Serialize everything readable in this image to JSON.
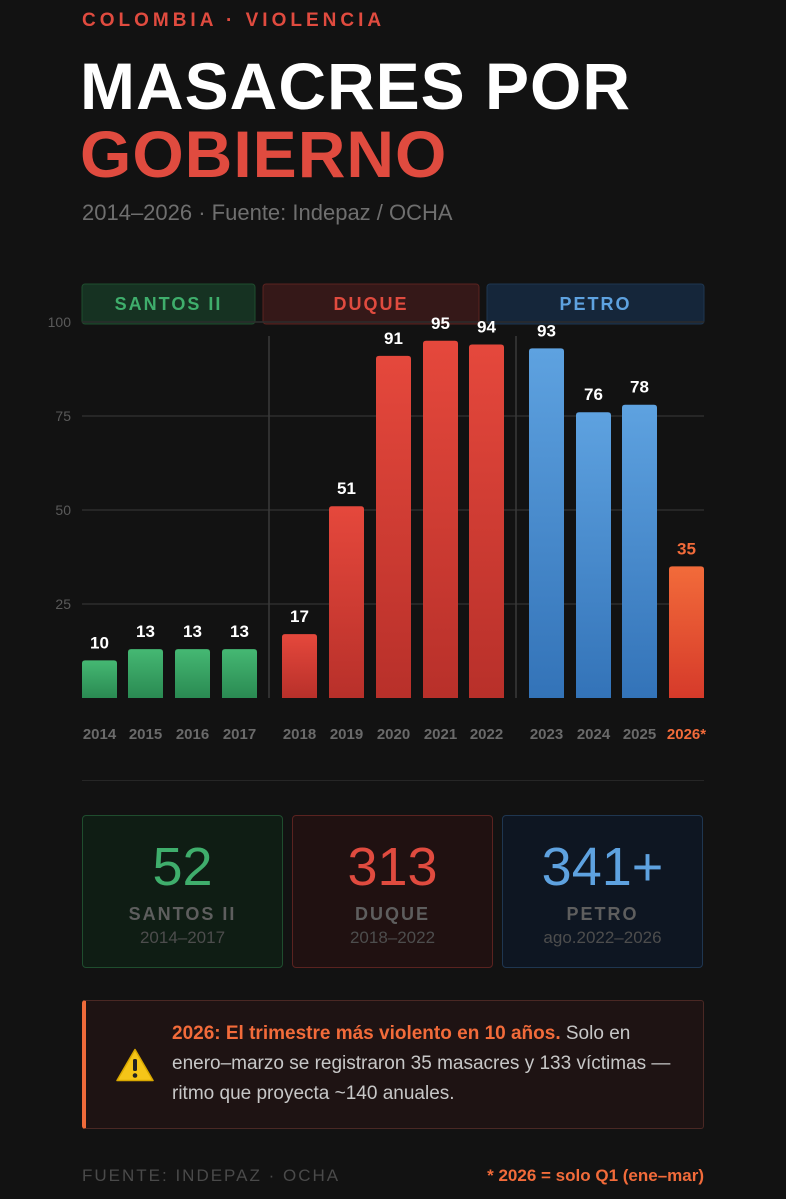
{
  "kicker": "COLOMBIA · VIOLENCIA",
  "title": {
    "line1": "MASACRES POR",
    "line2": "GOBIERNO"
  },
  "subtitle": "2014–2026 · Fuente: Indepaz / OCHA",
  "chart_data": {
    "type": "bar",
    "title": "MASACRES POR GOBIERNO",
    "ylim": [
      0,
      100
    ],
    "yticks": [
      25,
      50,
      75,
      100
    ],
    "grid": true,
    "categories": [
      "2014",
      "2015",
      "2016",
      "2017",
      "2018",
      "2019",
      "2020",
      "2021",
      "2022",
      "2023",
      "2024",
      "2025",
      "2026*"
    ],
    "values": [
      10,
      13,
      13,
      13,
      17,
      51,
      91,
      95,
      94,
      93,
      76,
      78,
      35
    ],
    "governments": [
      {
        "name": "SANTOS II",
        "start": 0,
        "end": 3,
        "color": "#3fae6c"
      },
      {
        "name": "DUQUE",
        "start": 4,
        "end": 8,
        "color": "#e04b3f"
      },
      {
        "name": "PETRO",
        "start": 9,
        "end": 12,
        "color": "#5ea2e0"
      }
    ],
    "highlight": {
      "index": 12,
      "color": "#f26b3a",
      "note": "* 2026 = solo Q1 (ene–mar)"
    }
  },
  "cards": [
    {
      "value": "52",
      "name": "SANTOS II",
      "period": "2014–2017"
    },
    {
      "value": "313",
      "name": "DUQUE",
      "period": "2018–2022"
    },
    {
      "value": "341+",
      "name": "PETRO",
      "period": "ago.2022–2026"
    }
  ],
  "alert": {
    "icon": "warning-icon",
    "lead": "2026: El trimestre más violento en 10 años.",
    "body": " Solo en enero–marzo se registraron 35 masacres y 133 víctimas — ritmo que proyecta ~140 anuales."
  },
  "footer": {
    "source": "FUENTE: INDEPAZ · OCHA",
    "note": "* 2026 = solo Q1 (ene–mar)"
  }
}
